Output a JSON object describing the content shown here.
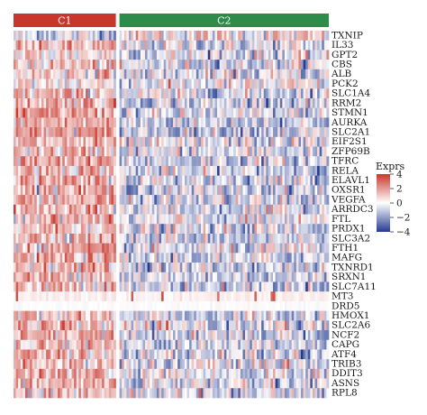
{
  "chart_data": {
    "type": "heatmap",
    "title": "",
    "clusters": [
      {
        "label": "C1",
        "color": "#c8372d",
        "n_samples": 44
      },
      {
        "label": "C2",
        "color": "#2e8b4a",
        "n_samples": 90
      }
    ],
    "genes": [
      "TXNIP",
      "IL33",
      "GPT2",
      "CBS",
      "ALB",
      "PCK2",
      "SLC1A4",
      "RRM2",
      "STMN1",
      "AURKA",
      "SLC2A1",
      "EIF2S1",
      "ZFP69B",
      "TFRC",
      "RELA",
      "ELAVL1",
      "OXSR1",
      "VEGFA",
      "ARRDC3",
      "FTL",
      "PRDX1",
      "SLC3A2",
      "FTH1",
      "MAFG",
      "TXNRD1",
      "SRXN1",
      "SLC7A11",
      "MT3",
      "DRD5",
      "HMOX1",
      "SLC2A6",
      "NCF2",
      "CAPG",
      "ATF4",
      "TRIB3",
      "DDIT3",
      "ASNS",
      "RPL8"
    ],
    "mean_expr_by_cluster": {
      "C1": [
        -0.3,
        0.6,
        0.3,
        0.5,
        0.5,
        0.2,
        0.6,
        0.9,
        0.9,
        0.8,
        0.9,
        0.6,
        0.6,
        0.8,
        0.8,
        0.7,
        0.7,
        0.8,
        0.6,
        0.7,
        0.7,
        0.8,
        0.7,
        0.7,
        0.8,
        0.8,
        0.8,
        0.2,
        0.0,
        0.6,
        0.6,
        0.6,
        0.7,
        0.7,
        0.7,
        0.7,
        0.7,
        0.6
      ],
      "C2": [
        0.2,
        -0.3,
        -0.2,
        -0.3,
        -0.3,
        -0.1,
        -0.3,
        -0.4,
        -0.4,
        -0.4,
        -0.4,
        -0.3,
        -0.3,
        -0.4,
        -0.4,
        -0.3,
        -0.4,
        -0.4,
        -0.3,
        -0.3,
        -0.4,
        -0.4,
        -0.3,
        -0.4,
        -0.4,
        -0.4,
        -0.4,
        -0.1,
        0.0,
        -0.3,
        -0.3,
        -0.3,
        -0.3,
        -0.3,
        -0.3,
        -0.3,
        -0.3,
        -0.3
      ]
    },
    "legend": {
      "title": "Exprs",
      "ticks": [
        4,
        2,
        0,
        -2,
        -4
      ],
      "range": [
        -4,
        4
      ],
      "colors": {
        "high": "#c8372d",
        "mid": "#ffffff",
        "low": "#243b8f"
      },
      "placement": "right"
    }
  }
}
